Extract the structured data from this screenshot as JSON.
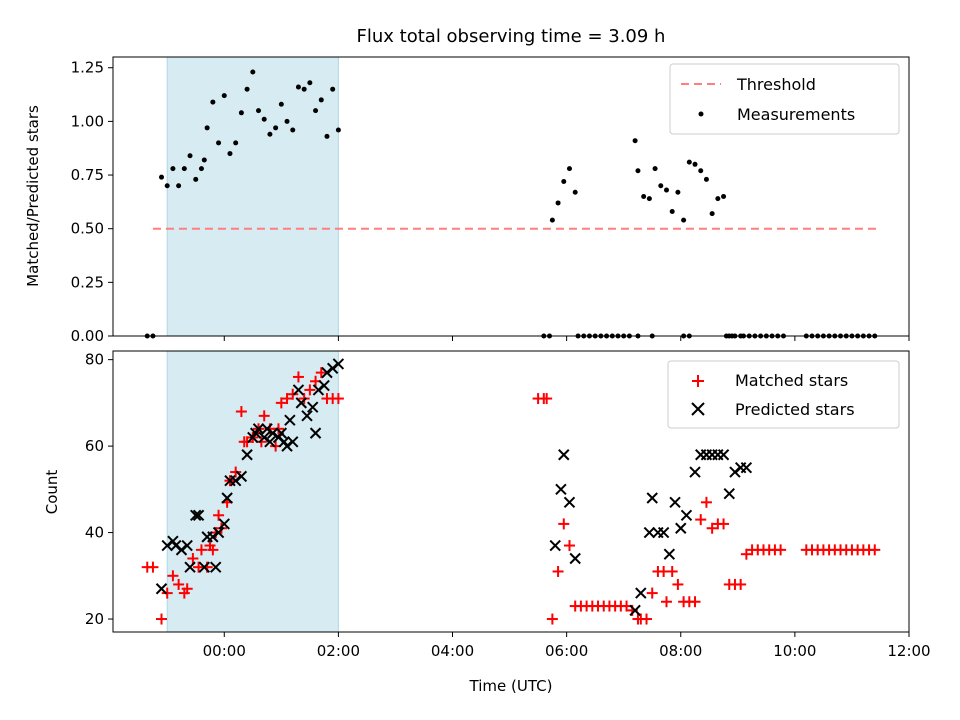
{
  "chart_data": [
    {
      "type": "scatter",
      "title": "Flux total observing time = 3.09 h",
      "xlabel": "",
      "ylabel": "Matched/Predicted stars",
      "ylim": [
        0,
        1.3
      ],
      "yticks": [
        "0.00",
        "0.25",
        "0.50",
        "0.75",
        "1.00",
        "1.25"
      ],
      "ytick_values": [
        0,
        0.25,
        0.5,
        0.75,
        1.0,
        1.25
      ],
      "xlim_hours": [
        -1.95,
        12.0
      ],
      "highlight_span_hours": [
        -1.0,
        2.0
      ],
      "threshold": {
        "name": "Threshold",
        "y": 0.5,
        "x_hours": [
          -1.25,
          11.45
        ],
        "color": "#ff7f7f"
      },
      "legend": {
        "position": "top-right",
        "entries": [
          "Threshold",
          "Measurements"
        ]
      },
      "series": [
        {
          "name": "Measurements",
          "color": "#000000",
          "x_hours": [
            -1.35,
            -1.25,
            -1.1,
            -1.0,
            -0.9,
            -0.8,
            -0.7,
            -0.6,
            -0.5,
            -0.4,
            -0.35,
            -0.3,
            -0.2,
            -0.1,
            0.0,
            0.1,
            0.2,
            0.3,
            0.4,
            0.5,
            0.6,
            0.7,
            0.8,
            0.9,
            1.0,
            1.1,
            1.2,
            1.3,
            1.4,
            1.5,
            1.6,
            1.7,
            1.8,
            1.9,
            2.0,
            5.75,
            5.85,
            5.95,
            6.05,
            6.15,
            5.6,
            5.7,
            6.2,
            6.3,
            6.4,
            6.5,
            6.6,
            6.7,
            6.8,
            6.9,
            7.0,
            7.1,
            7.2,
            7.25,
            7.35,
            7.45,
            7.55,
            7.65,
            7.75,
            7.85,
            7.95,
            8.05,
            8.15,
            8.25,
            8.35,
            8.45,
            8.55,
            8.65,
            8.75,
            8.85,
            8.95,
            9.05,
            7.25,
            7.5,
            8.05,
            8.15,
            8.8,
            8.9,
            9.1,
            9.2,
            9.3,
            9.4,
            9.5,
            9.6,
            9.7,
            9.8,
            10.2,
            10.3,
            10.4,
            10.5,
            10.6,
            10.7,
            10.8,
            10.9,
            11.0,
            11.1,
            11.2,
            11.3,
            11.4
          ],
          "y": [
            0.0,
            0.0,
            0.74,
            0.7,
            0.78,
            0.7,
            0.78,
            0.84,
            0.73,
            0.78,
            0.82,
            0.97,
            1.09,
            0.9,
            1.12,
            0.85,
            0.9,
            1.04,
            1.15,
            1.23,
            1.05,
            1.01,
            0.94,
            0.97,
            1.08,
            1.0,
            0.96,
            1.16,
            1.15,
            1.18,
            1.05,
            1.1,
            0.93,
            1.15,
            0.96,
            0.54,
            0.62,
            0.72,
            0.78,
            0.67,
            0.0,
            0.0,
            0.0,
            0.0,
            0.0,
            0.0,
            0.0,
            0.0,
            0.0,
            0.0,
            0.0,
            0.0,
            0.91,
            0.77,
            0.65,
            0.64,
            0.78,
            0.7,
            0.68,
            0.58,
            0.67,
            0.54,
            0.81,
            0.8,
            0.77,
            0.73,
            0.57,
            0.64,
            0.65,
            0.0,
            0.0,
            0.0,
            0.0,
            0.0,
            0.0,
            0.0,
            0.0,
            0.0,
            0.0,
            0.0,
            0.0,
            0.0,
            0.0,
            0.0,
            0.0,
            0.0,
            0.0,
            0.0,
            0.0,
            0.0,
            0.0,
            0.0,
            0.0,
            0.0,
            0.0,
            0.0,
            0.0,
            0.0,
            0.0
          ]
        }
      ]
    },
    {
      "type": "scatter",
      "title": "",
      "xlabel": "Time (UTC)",
      "ylabel": "Count",
      "ylim": [
        17,
        82
      ],
      "yticks": [
        "20",
        "40",
        "60",
        "80"
      ],
      "ytick_values": [
        20,
        40,
        60,
        80
      ],
      "xlim_hours": [
        -1.95,
        12.0
      ],
      "xticks": [
        "00:00",
        "02:00",
        "04:00",
        "06:00",
        "08:00",
        "10:00",
        "12:00"
      ],
      "xtick_hours": [
        0,
        2,
        4,
        6,
        8,
        10,
        12
      ],
      "highlight_span_hours": [
        -1.0,
        2.0
      ],
      "legend": {
        "position": "top-right",
        "entries": [
          "Matched stars",
          "Predicted stars"
        ]
      },
      "series": [
        {
          "name": "Matched stars",
          "marker": "plus",
          "color": "#ff0000",
          "x_hours": [
            -1.35,
            -1.25,
            -1.1,
            -1.0,
            -0.9,
            -0.8,
            -0.7,
            -0.65,
            -0.55,
            -0.45,
            -0.4,
            -0.3,
            -0.25,
            -0.2,
            -0.15,
            -0.1,
            -0.05,
            0.05,
            0.1,
            0.2,
            0.3,
            0.35,
            0.4,
            0.5,
            0.6,
            0.65,
            0.7,
            0.8,
            0.9,
            0.95,
            1.0,
            1.1,
            1.2,
            1.3,
            1.4,
            1.5,
            1.6,
            1.7,
            1.8,
            1.9,
            2.0,
            5.5,
            5.6,
            5.65,
            5.75,
            5.85,
            5.95,
            6.05,
            6.15,
            6.25,
            6.35,
            6.45,
            6.55,
            6.65,
            6.75,
            6.85,
            6.95,
            7.05,
            7.15,
            7.25,
            7.3,
            7.4,
            7.5,
            7.6,
            7.7,
            7.75,
            7.85,
            7.95,
            8.05,
            8.15,
            8.25,
            8.35,
            8.45,
            8.55,
            8.65,
            8.75,
            8.85,
            8.95,
            9.05,
            9.15,
            9.25,
            9.35,
            9.45,
            9.55,
            9.65,
            9.75,
            10.2,
            10.3,
            10.4,
            10.5,
            10.6,
            10.7,
            10.8,
            10.9,
            11.0,
            11.1,
            11.2,
            11.3,
            11.4
          ],
          "y": [
            32,
            32,
            20,
            26,
            30,
            28,
            26,
            27,
            34,
            32,
            36,
            32,
            37,
            36,
            40,
            44,
            41,
            47,
            52,
            54,
            68,
            61,
            61,
            62,
            64,
            61,
            67,
            64,
            60,
            64,
            70,
            71,
            72,
            76,
            71,
            73,
            75,
            77,
            71,
            71,
            71,
            71,
            71,
            71,
            20,
            31,
            42,
            37,
            23,
            23,
            23,
            23,
            23,
            23,
            23,
            23,
            23,
            23,
            22,
            20,
            20,
            20,
            26,
            31,
            31,
            24,
            31,
            28,
            24,
            24,
            24,
            43,
            47,
            41,
            42,
            42,
            28,
            28,
            28,
            35,
            36,
            36,
            36,
            36,
            36,
            36,
            36,
            36,
            36,
            36,
            36,
            36,
            36,
            36,
            36,
            36,
            36,
            36,
            36
          ]
        },
        {
          "name": "Predicted stars",
          "marker": "cross",
          "color": "#000000",
          "x_hours": [
            -1.1,
            -1.0,
            -0.9,
            -0.85,
            -0.75,
            -0.65,
            -0.6,
            -0.5,
            -0.45,
            -0.35,
            -0.3,
            -0.2,
            -0.15,
            -0.1,
            0.0,
            0.05,
            0.1,
            0.2,
            0.3,
            0.4,
            0.5,
            0.55,
            0.6,
            0.7,
            0.75,
            0.8,
            0.85,
            0.95,
            1.0,
            1.05,
            1.1,
            1.15,
            1.2,
            1.3,
            1.35,
            1.45,
            1.55,
            1.6,
            1.65,
            1.75,
            1.8,
            1.9,
            2.0,
            5.8,
            5.9,
            5.95,
            6.05,
            6.15,
            7.2,
            7.3,
            7.45,
            7.5,
            7.6,
            7.7,
            7.8,
            7.9,
            8.0,
            8.1,
            8.25,
            8.35,
            8.45,
            8.55,
            8.65,
            8.75,
            8.85,
            8.95,
            9.05,
            9.15
          ],
          "y": [
            27,
            37,
            38,
            37,
            36,
            37,
            32,
            44,
            44,
            32,
            39,
            39,
            32,
            40,
            42,
            48,
            52,
            52,
            53,
            58,
            62,
            63,
            64,
            62,
            64,
            61,
            63,
            62,
            63,
            61,
            60,
            66,
            61,
            73,
            70,
            67,
            69,
            63,
            73,
            74,
            77,
            78,
            79,
            37,
            50,
            58,
            47,
            34,
            22,
            26,
            40,
            48,
            40,
            40,
            35,
            47,
            41,
            44,
            54,
            58,
            58,
            58,
            58,
            58,
            49,
            54,
            55,
            55
          ]
        }
      ]
    }
  ]
}
